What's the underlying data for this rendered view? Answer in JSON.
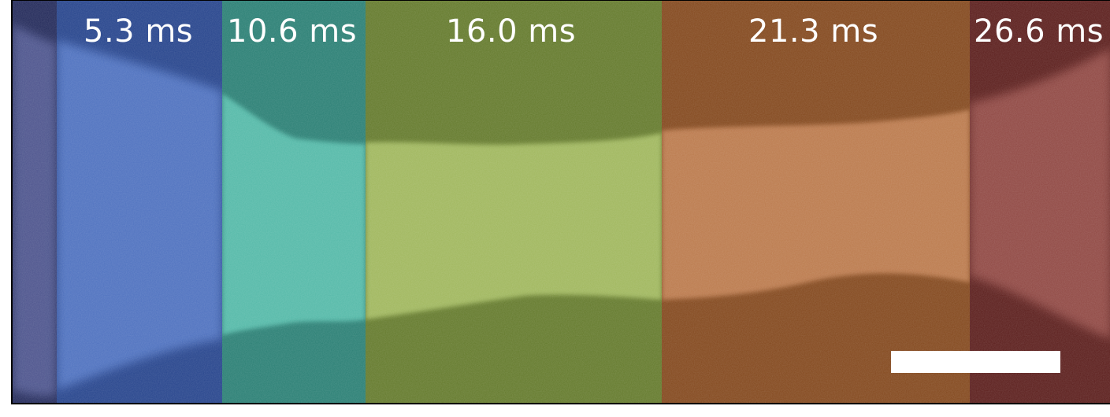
{
  "panels": [
    {
      "time_label": "",
      "base": "#232a5a",
      "glow": "#6f78b8"
    },
    {
      "time_label": "5.3 ms",
      "base": "#26448c",
      "glow": "#6f97ea"
    },
    {
      "time_label": "10.6 ms",
      "base": "#2a7f74",
      "glow": "#6fe0cb"
    },
    {
      "time_label": "16.0 ms",
      "base": "#647a2c",
      "glow": "#c8e07f"
    },
    {
      "time_label": "21.3 ms",
      "base": "#83481d",
      "glow": "#e9a373"
    },
    {
      "time_label": "26.6 ms",
      "base": "#5b1e1c",
      "glow": "#c5726b"
    }
  ],
  "scale_bar": {
    "color": "#ffffff"
  }
}
